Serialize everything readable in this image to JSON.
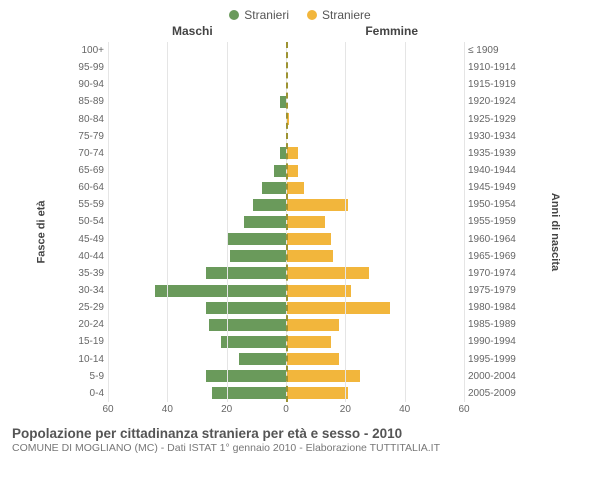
{
  "legend": {
    "male": {
      "label": "Stranieri",
      "color": "#6a9a5b"
    },
    "female": {
      "label": "Straniere",
      "color": "#f2b63c"
    }
  },
  "columns": {
    "male": "Maschi",
    "female": "Femmine"
  },
  "y_left_label": "Fasce di età",
  "y_right_label": "Anni di nascita",
  "title": "Popolazione per cittadinanza straniera per età e sesso - 2010",
  "subtitle": "COMUNE DI MOGLIANO (MC) - Dati ISTAT 1° gennaio 2010 - Elaborazione TUTTITALIA.IT",
  "chart": {
    "type": "population-pyramid",
    "xmax": 60,
    "xticks": [
      60,
      40,
      20,
      0,
      20,
      40,
      60
    ],
    "grid_color": "#e5e5e5",
    "centerline_color": "#9d9333",
    "background_color": "#ffffff",
    "bar_height_ratio": 0.7,
    "label_fontsize": 10,
    "title_fontsize": 13.5
  },
  "rows": [
    {
      "age": "100+",
      "birth": "≤ 1909",
      "m": 0,
      "f": 0
    },
    {
      "age": "95-99",
      "birth": "1910-1914",
      "m": 0,
      "f": 0
    },
    {
      "age": "90-94",
      "birth": "1915-1919",
      "m": 0,
      "f": 0
    },
    {
      "age": "85-89",
      "birth": "1920-1924",
      "m": 2,
      "f": 0
    },
    {
      "age": "80-84",
      "birth": "1925-1929",
      "m": 0,
      "f": 1
    },
    {
      "age": "75-79",
      "birth": "1930-1934",
      "m": 0,
      "f": 0
    },
    {
      "age": "70-74",
      "birth": "1935-1939",
      "m": 2,
      "f": 4
    },
    {
      "age": "65-69",
      "birth": "1940-1944",
      "m": 4,
      "f": 4
    },
    {
      "age": "60-64",
      "birth": "1945-1949",
      "m": 8,
      "f": 6
    },
    {
      "age": "55-59",
      "birth": "1950-1954",
      "m": 11,
      "f": 21
    },
    {
      "age": "50-54",
      "birth": "1955-1959",
      "m": 14,
      "f": 13
    },
    {
      "age": "45-49",
      "birth": "1960-1964",
      "m": 20,
      "f": 15
    },
    {
      "age": "40-44",
      "birth": "1965-1969",
      "m": 19,
      "f": 16
    },
    {
      "age": "35-39",
      "birth": "1970-1974",
      "m": 27,
      "f": 28
    },
    {
      "age": "30-34",
      "birth": "1975-1979",
      "m": 44,
      "f": 22
    },
    {
      "age": "25-29",
      "birth": "1980-1984",
      "m": 27,
      "f": 35
    },
    {
      "age": "20-24",
      "birth": "1985-1989",
      "m": 26,
      "f": 18
    },
    {
      "age": "15-19",
      "birth": "1990-1994",
      "m": 22,
      "f": 15
    },
    {
      "age": "10-14",
      "birth": "1995-1999",
      "m": 16,
      "f": 18
    },
    {
      "age": "5-9",
      "birth": "2000-2004",
      "m": 27,
      "f": 25
    },
    {
      "age": "0-4",
      "birth": "2005-2009",
      "m": 25,
      "f": 21
    }
  ]
}
